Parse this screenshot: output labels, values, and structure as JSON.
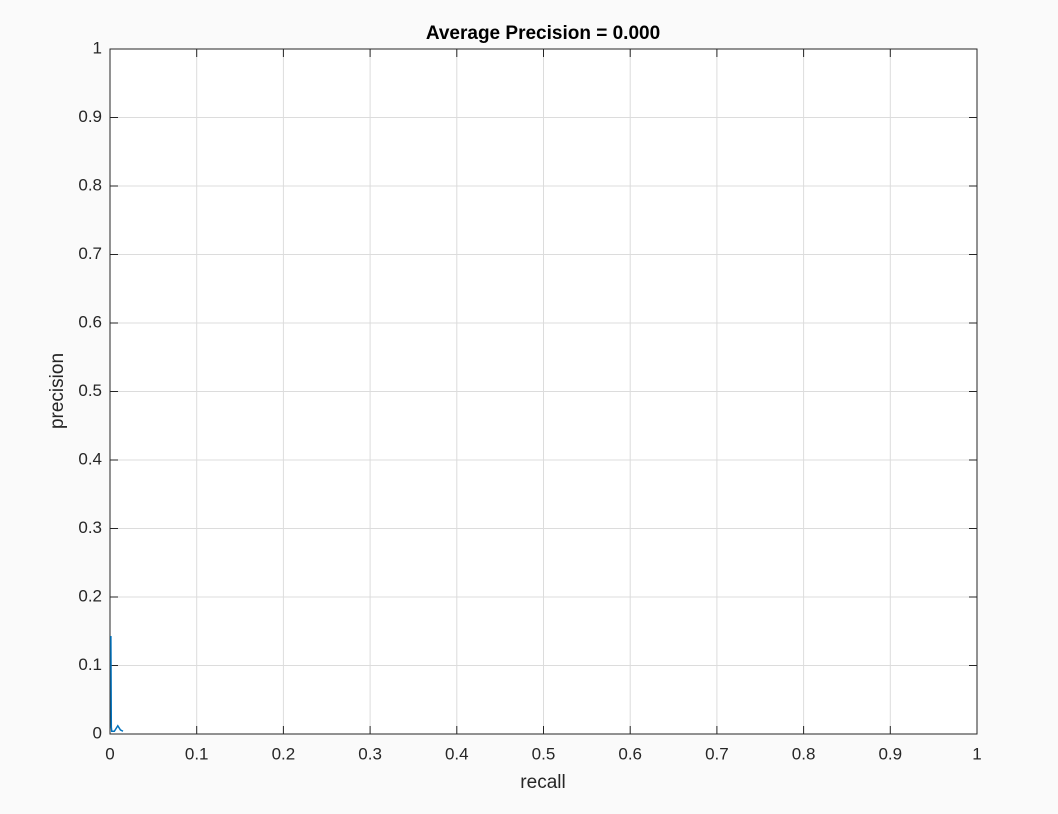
{
  "chart_data": {
    "type": "line",
    "title": "Average Precision = 0.000",
    "x_label": "recall",
    "y_label": "precision",
    "x": [
      0.001,
      0.0015,
      0.002,
      0.005,
      0.009,
      0.012,
      0.015
    ],
    "values": [
      0.143,
      0.01,
      0.004,
      0.004,
      0.012,
      0.006,
      0.004
    ],
    "color": "#0072bd",
    "xlim": [
      0,
      1
    ],
    "xticks": [
      0,
      0.1,
      0.2,
      0.3,
      0.4,
      0.5,
      0.6,
      0.7,
      0.8,
      0.9,
      1
    ],
    "ylim": [
      0,
      1
    ],
    "yticks": [
      0,
      0.1,
      0.2,
      0.3,
      0.4,
      0.5,
      0.6,
      0.7,
      0.8,
      0.9,
      1
    ],
    "grid": true
  }
}
